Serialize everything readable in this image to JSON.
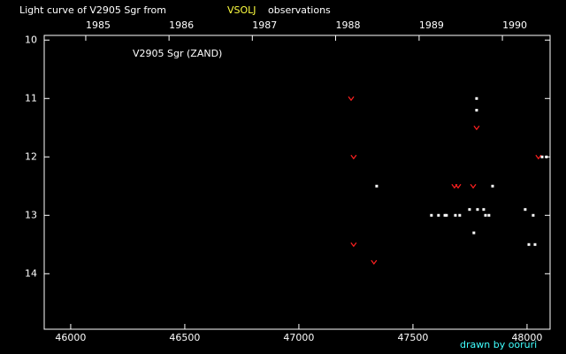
{
  "chart_data": {
    "type": "scatter",
    "title": "Light curve of V2905 Sgr from",
    "title_highlight": "VSOLJ",
    "title_end": "observations",
    "label": "V2905 Sgr (ZAND)",
    "credit": "drawn by ooruri",
    "xlim": [
      45884,
      48101
    ],
    "ylim": [
      14.95,
      9.92
    ],
    "xticks": [
      46000,
      46500,
      47000,
      47500,
      48000
    ],
    "yticks": [
      10,
      11,
      12,
      13,
      14
    ],
    "x2ticks": [
      {
        "value": 46066,
        "label": "1985"
      },
      {
        "value": 46431,
        "label": "1986"
      },
      {
        "value": 46796,
        "label": "1987"
      },
      {
        "value": 47161,
        "label": "1988"
      },
      {
        "value": 47527,
        "label": "1989"
      },
      {
        "value": 47892,
        "label": "1990"
      }
    ],
    "series": [
      {
        "color": "#ff2020",
        "marker": "v",
        "x": [
          47229,
          47240,
          47240,
          47329,
          47682,
          47698,
          47764,
          47779,
          48050
        ],
        "values": [
          11.0,
          12.0,
          13.5,
          13.8,
          12.5,
          12.5,
          12.5,
          11.5,
          12.0
        ]
      },
      {
        "color": "#ffffff",
        "marker": "dot",
        "x": [
          47341,
          47581,
          47612,
          47640,
          47647,
          47686,
          47705,
          47748,
          47767,
          47779,
          47779,
          47783,
          47810,
          47818,
          47833,
          47849,
          47992,
          48008,
          48027,
          48035,
          48066,
          48085
        ],
        "values": [
          12.5,
          13.0,
          13.0,
          13.0,
          13.0,
          13.0,
          13.0,
          12.9,
          13.3,
          11.0,
          11.2,
          12.9,
          12.9,
          13.0,
          13.0,
          12.5,
          12.9,
          13.5,
          13.0,
          13.5,
          12.0,
          12.0
        ]
      }
    ]
  }
}
